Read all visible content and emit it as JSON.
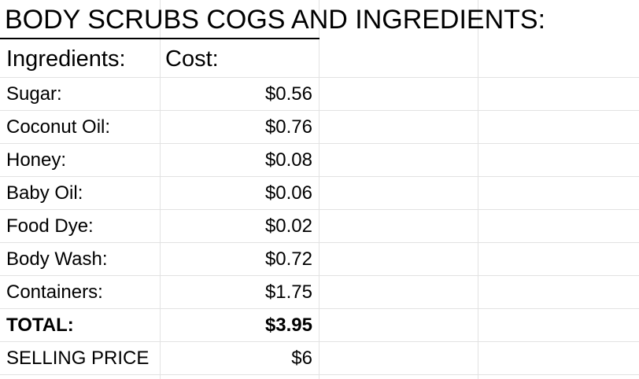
{
  "sheet": {
    "title": "BODY SCRUBS COGS AND INGREDIENTS:",
    "header": {
      "col1": "Ingredients:",
      "col2": "Cost:"
    },
    "rows": [
      {
        "name": "Sugar:",
        "cost": "$0.56"
      },
      {
        "name": "Coconut Oil:",
        "cost": "$0.76"
      },
      {
        "name": "Honey:",
        "cost": "$0.08"
      },
      {
        "name": "Baby Oil:",
        "cost": "$0.06"
      },
      {
        "name": "Food Dye:",
        "cost": "$0.02"
      },
      {
        "name": "Body Wash:",
        "cost": "$0.72"
      },
      {
        "name": "Containers:",
        "cost": "$1.75"
      }
    ],
    "total": {
      "label": "TOTAL:",
      "value": "$3.95"
    },
    "selling": {
      "label": "SELLING PRICE",
      "value": "$6"
    }
  }
}
